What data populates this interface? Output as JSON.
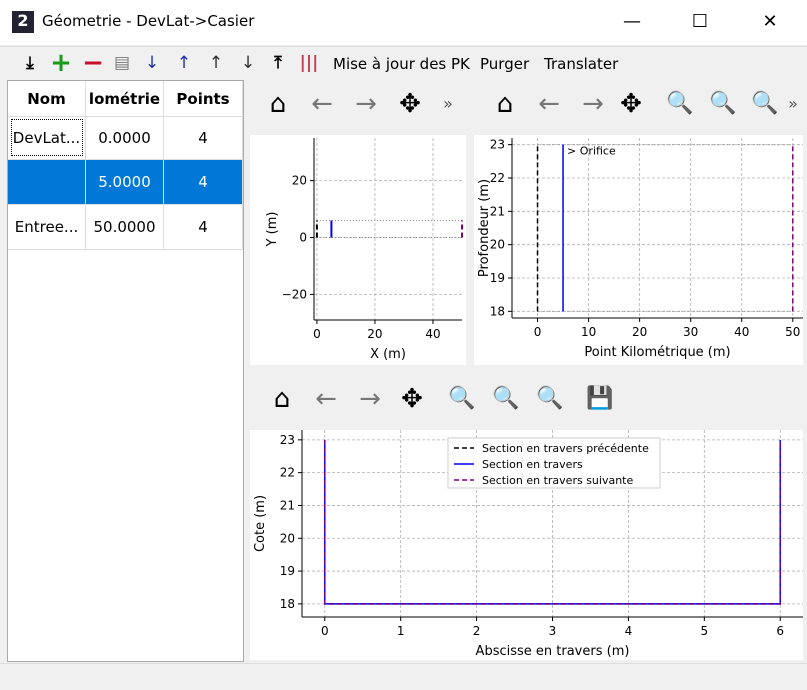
{
  "window": {
    "title": "Géometrie - DevLat->Casier",
    "minimize": "—",
    "maximize": "☐",
    "close": "✕"
  },
  "toolbar": {
    "import": "⤓",
    "add": "+",
    "remove": "−",
    "notes": "▤",
    "sort_down": "↓",
    "sort_up": "↑",
    "move_up": "↑",
    "move_down": "↓",
    "export": "⤒",
    "barcode": "|||",
    "update_pk": "Mise à jour des PK",
    "purge": "Purger",
    "translate": "Translater"
  },
  "table": {
    "headers": [
      "Nom",
      "lométrie",
      "Points"
    ],
    "rows": [
      {
        "name": "DevLat...",
        "pk": "0.0000",
        "points": "4"
      },
      {
        "name": "",
        "pk": "5.0000",
        "points": "4"
      },
      {
        "name": "Entree...",
        "pk": "50.0000",
        "points": "4"
      }
    ],
    "selected_row": 1,
    "selection_color": "#0078d7"
  },
  "nav": {
    "home": "⌂",
    "back": "←",
    "forward": "→",
    "pan": "✥",
    "zoom": "🔍",
    "more": "»",
    "save": "💾"
  },
  "chart_data": [
    {
      "type": "line",
      "xlabel": "X (m)",
      "ylabel": "Y (m)",
      "xlim": [
        -1,
        50
      ],
      "ylim": [
        -29,
        35
      ],
      "xticks": [
        0,
        20,
        40
      ],
      "yticks": [
        -20,
        0,
        20
      ],
      "grid": true,
      "series": [
        {
          "color": "#000000",
          "style": "dashed",
          "x": [
            0,
            0
          ],
          "y": [
            0,
            6
          ]
        },
        {
          "color": "#0000ff",
          "style": "solid",
          "x": [
            5,
            5
          ],
          "y": [
            0,
            6
          ]
        },
        {
          "color": "#800080",
          "style": "dashed",
          "x": [
            50,
            50
          ],
          "y": [
            0,
            6
          ]
        }
      ]
    },
    {
      "type": "line",
      "xlabel": "Point Kilométrique (m)",
      "ylabel": "Profondeur (m)",
      "xlim": [
        -5,
        52
      ],
      "ylim": [
        17.8,
        23.2
      ],
      "xticks": [
        0,
        10,
        20,
        30,
        40,
        50
      ],
      "yticks": [
        18,
        19,
        20,
        21,
        22,
        23
      ],
      "grid": true,
      "annotation": "> Orifice",
      "series": [
        {
          "color": "#000000",
          "style": "dashed",
          "x": [
            0,
            0
          ],
          "y": [
            18,
            23
          ]
        },
        {
          "color": "#0000ff",
          "style": "solid",
          "x": [
            5,
            5
          ],
          "y": [
            18,
            23
          ]
        },
        {
          "color": "#800080",
          "style": "dashed",
          "x": [
            50,
            50
          ],
          "y": [
            18,
            23
          ]
        }
      ]
    },
    {
      "type": "line",
      "xlabel": "Abscisse en travers (m)",
      "ylabel": "Cote (m)",
      "xlim": [
        -0.3,
        6.3
      ],
      "ylim": [
        17.6,
        23.3
      ],
      "xticks": [
        0,
        1,
        2,
        3,
        4,
        5,
        6
      ],
      "yticks": [
        18,
        19,
        20,
        21,
        22,
        23
      ],
      "grid": true,
      "legend": "top-center",
      "series": [
        {
          "name": "Section en travers précédente",
          "color": "#000000",
          "style": "dashed",
          "x": [
            0,
            0,
            6,
            6
          ],
          "y": [
            23,
            18,
            18,
            23
          ]
        },
        {
          "name": "Section en travers",
          "color": "#0000ff",
          "style": "solid",
          "x": [
            0,
            0,
            6,
            6
          ],
          "y": [
            23,
            18,
            18,
            23
          ]
        },
        {
          "name": "Section en travers suivante",
          "color": "#800080",
          "style": "dashed",
          "x": [
            0,
            0,
            6,
            6
          ],
          "y": [
            23,
            18,
            18,
            23
          ]
        }
      ]
    }
  ]
}
